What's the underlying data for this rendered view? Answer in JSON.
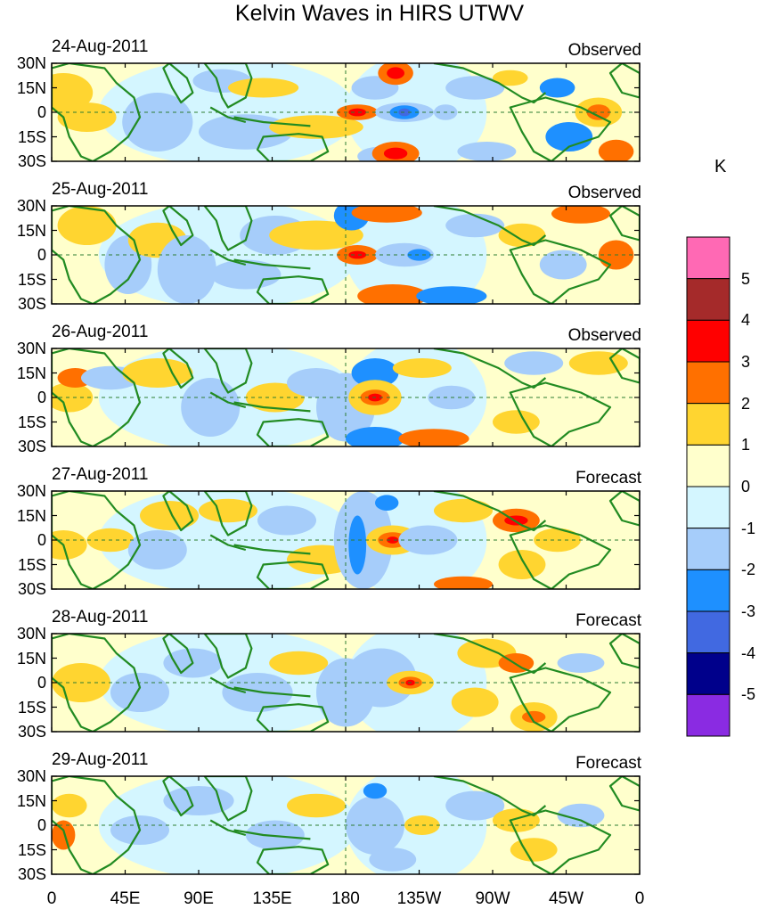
{
  "chart_data": {
    "type": "heatmap",
    "title": "Kelvin Waves in HIRS UTWV",
    "lat_ticks": [
      "30N",
      "15N",
      "0",
      "15S",
      "30S"
    ],
    "lon_ticks": [
      "0",
      "45E",
      "90E",
      "135E",
      "180",
      "135W",
      "90W",
      "45W",
      "0"
    ],
    "colorbar": {
      "unit": "K",
      "levels": [
        "5",
        "4",
        "3",
        "2",
        "1",
        "0",
        "-1",
        "-2",
        "-3",
        "-4",
        "-5"
      ],
      "colors": [
        "#ff69b4",
        "#a52a2a",
        "#ff0000",
        "#ff7000",
        "#ffd530",
        "#ffffcc",
        "#d4f6ff",
        "#a6cdfa",
        "#1e90ff",
        "#4169e1",
        "#00008b",
        "#8a2be2"
      ]
    },
    "panels": [
      {
        "date": "24-Aug-2011",
        "label": "Observed"
      },
      {
        "date": "25-Aug-2011",
        "label": "Observed"
      },
      {
        "date": "26-Aug-2011",
        "label": "Observed"
      },
      {
        "date": "27-Aug-2011",
        "label": "Forecast"
      },
      {
        "date": "28-Aug-2011",
        "label": "Forecast"
      },
      {
        "date": "29-Aug-2011",
        "label": "Forecast"
      }
    ]
  }
}
